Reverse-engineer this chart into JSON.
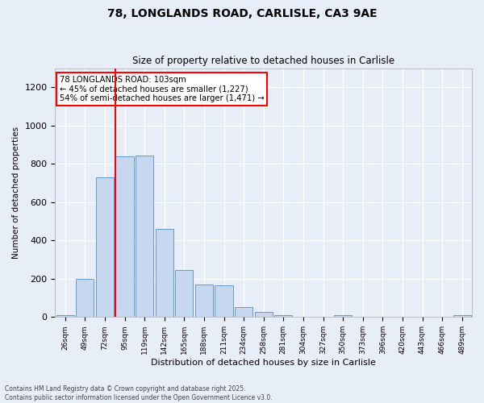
{
  "title1": "78, LONGLANDS ROAD, CARLISLE, CA3 9AE",
  "title2": "Size of property relative to detached houses in Carlisle",
  "xlabel": "Distribution of detached houses by size in Carlisle",
  "ylabel": "Number of detached properties",
  "categories": [
    "26sqm",
    "49sqm",
    "72sqm",
    "95sqm",
    "119sqm",
    "142sqm",
    "165sqm",
    "188sqm",
    "211sqm",
    "234sqm",
    "258sqm",
    "281sqm",
    "304sqm",
    "327sqm",
    "350sqm",
    "373sqm",
    "396sqm",
    "420sqm",
    "443sqm",
    "466sqm",
    "489sqm"
  ],
  "values": [
    8,
    200,
    730,
    840,
    845,
    460,
    245,
    170,
    165,
    50,
    28,
    8,
    0,
    0,
    8,
    0,
    0,
    0,
    0,
    0,
    8
  ],
  "bar_color": "#c5d8f0",
  "bar_edge_color": "#6699cc",
  "red_line_index": 3,
  "annotation_line1": "78 LONGLANDS ROAD: 103sqm",
  "annotation_line2": "← 45% of detached houses are smaller (1,227)",
  "annotation_line3": "54% of semi-detached houses are larger (1,471) →",
  "annotation_box_color": "white",
  "annotation_box_edge": "red",
  "ylim": [
    0,
    1300
  ],
  "yticks": [
    0,
    200,
    400,
    600,
    800,
    1000,
    1200
  ],
  "footer1": "Contains HM Land Registry data © Crown copyright and database right 2025.",
  "footer2": "Contains public sector information licensed under the Open Government Licence v3.0.",
  "bg_color": "#e8eef8",
  "plot_bg_color": "#e8eef8"
}
